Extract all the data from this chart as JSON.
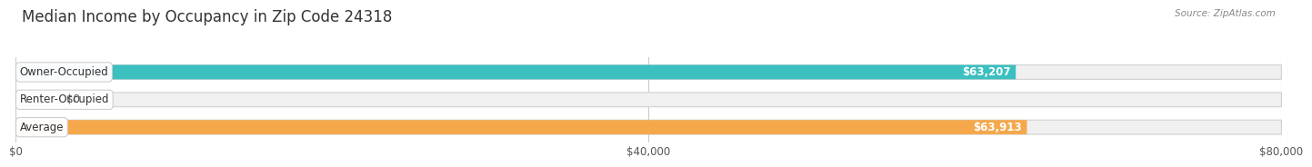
{
  "title": "Median Income by Occupancy in Zip Code 24318",
  "source": "Source: ZipAtlas.com",
  "categories": [
    "Owner-Occupied",
    "Renter-Occupied",
    "Average"
  ],
  "values": [
    63207,
    0,
    63913
  ],
  "labels": [
    "$63,207",
    "$0",
    "$63,913"
  ],
  "colors": [
    "#3bbfbf",
    "#c9a8d4",
    "#f5a84b"
  ],
  "xlim": [
    0,
    80000
  ],
  "xticks": [
    0,
    40000,
    80000
  ],
  "xticklabels": [
    "$0",
    "$40,000",
    "$80,000"
  ],
  "title_fontsize": 12,
  "bar_height": 0.52,
  "figsize": [
    14.06,
    1.96
  ]
}
